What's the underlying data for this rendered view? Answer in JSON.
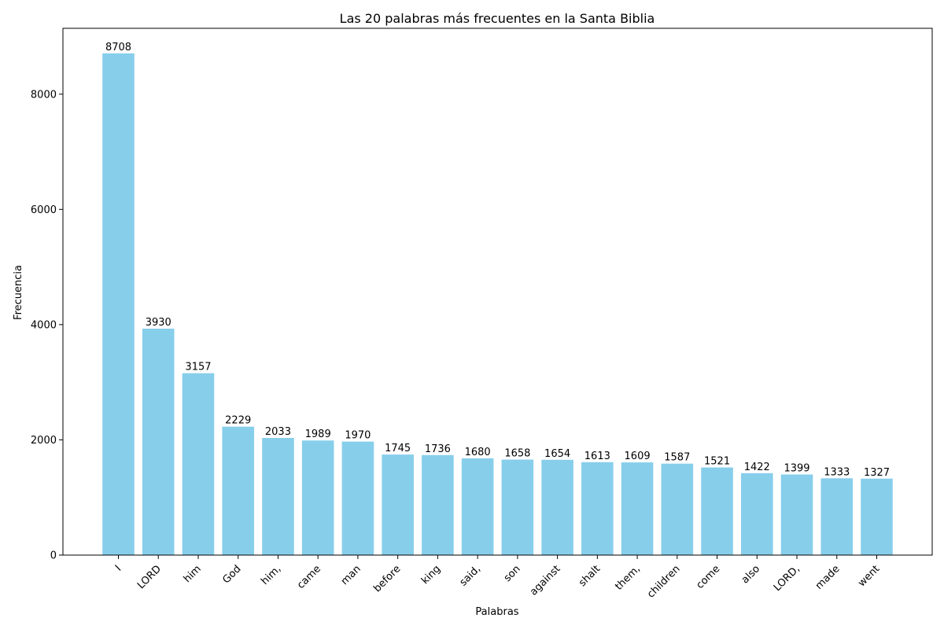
{
  "chart_data": {
    "type": "bar",
    "title": "Las 20 palabras más frecuentes en la Santa Biblia",
    "xlabel": "Palabras",
    "ylabel": "Frecuencia",
    "categories": [
      "I",
      "LORD",
      "him",
      "God",
      "him,",
      "came",
      "man",
      "before",
      "king",
      "said,",
      "son",
      "against",
      "shalt",
      "them,",
      "children",
      "come",
      "also",
      "LORD,",
      "made",
      "went"
    ],
    "values": [
      8708,
      3930,
      3157,
      2229,
      2033,
      1989,
      1970,
      1745,
      1736,
      1680,
      1658,
      1654,
      1613,
      1609,
      1587,
      1521,
      1422,
      1399,
      1333,
      1327
    ],
    "ylim": [
      0,
      9143
    ],
    "yticks": [
      0,
      2000,
      4000,
      6000,
      8000
    ],
    "bar_color": "#87ceeb",
    "grid": false,
    "legend": "none"
  }
}
